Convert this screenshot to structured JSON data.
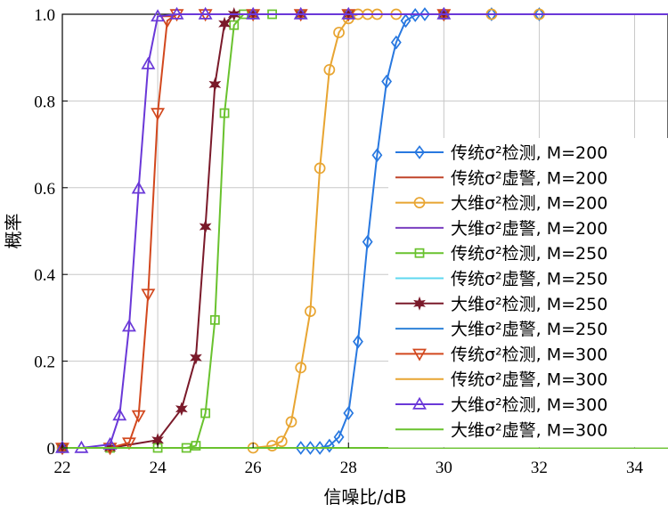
{
  "chart_data": {
    "type": "line",
    "xlabel": "信噪比/dB",
    "ylabel": "概率",
    "xlim": [
      22,
      34.7
    ],
    "ylim": [
      0,
      1
    ],
    "x_ticks": [
      "22",
      "24",
      "26",
      "28",
      "30",
      "32",
      "34"
    ],
    "y_ticks": [
      "0",
      "0.2",
      "0.4",
      "0.6",
      "0.8",
      "1.0"
    ],
    "grid": true,
    "legend_position": "right",
    "series": [
      {
        "name": "传统σ²检测, M=200",
        "color": "#2878e0",
        "marker": "diamond",
        "x": [
          22,
          27,
          27.2,
          27.4,
          27.6,
          27.8,
          28,
          28.2,
          28.4,
          28.6,
          28.8,
          29,
          29.2,
          29.4,
          29.6,
          30,
          31,
          32,
          34.7
        ],
        "y": [
          0,
          0,
          0,
          0,
          0.005,
          0.025,
          0.08,
          0.245,
          0.475,
          0.675,
          0.845,
          0.935,
          0.985,
          0.998,
          1,
          1,
          1,
          1,
          1
        ]
      },
      {
        "name": "传统σ²虚警, M=200",
        "color": "#c0452a",
        "marker": "none",
        "x": [
          22,
          34.7
        ],
        "y": [
          0,
          0
        ]
      },
      {
        "name": "大维σ²检测, M=200",
        "color": "#e8a532",
        "marker": "circle",
        "x": [
          22,
          26,
          26.4,
          26.6,
          26.8,
          27,
          27.2,
          27.4,
          27.6,
          27.8,
          28,
          28.2,
          28.4,
          28.6,
          29,
          30,
          31,
          32,
          34.7
        ],
        "y": [
          0,
          0,
          0.005,
          0.015,
          0.06,
          0.185,
          0.315,
          0.645,
          0.872,
          0.958,
          0.99,
          1,
          1,
          1,
          1,
          1,
          1,
          1,
          1
        ]
      },
      {
        "name": "大维σ²虚警, M=200",
        "color": "#7a3fc0",
        "marker": "none",
        "x": [
          22,
          34.7
        ],
        "y": [
          0,
          0
        ]
      },
      {
        "name": "传统σ²检测, M=250",
        "color": "#69c22e",
        "marker": "square",
        "x": [
          22,
          23,
          24,
          24.6,
          24.8,
          25,
          25.2,
          25.4,
          25.6,
          25.8,
          26,
          26.4,
          27,
          28,
          30,
          34.7
        ],
        "y": [
          0,
          0,
          0,
          0,
          0.005,
          0.08,
          0.295,
          0.772,
          0.975,
          1,
          1,
          1,
          1,
          1,
          1,
          1
        ]
      },
      {
        "name": "传统σ²虚警, M=250",
        "color": "#5fd8f0",
        "marker": "none",
        "x": [
          22,
          34.7
        ],
        "y": [
          0,
          0
        ]
      },
      {
        "name": "大维σ²检测, M=250",
        "color": "#7a1a2a",
        "marker": "star",
        "x": [
          22,
          23,
          24,
          24.5,
          24.8,
          25,
          25.2,
          25.4,
          25.6,
          26,
          27,
          28,
          30,
          34.7
        ],
        "y": [
          0,
          0,
          0.018,
          0.09,
          0.208,
          0.51,
          0.838,
          0.978,
          1,
          1,
          1,
          1,
          1,
          1
        ]
      },
      {
        "name": "大维σ²虚警, M=250",
        "color": "#2e82d8",
        "marker": "none",
        "x": [
          22,
          34.7
        ],
        "y": [
          0,
          0
        ]
      },
      {
        "name": "传统σ²检测, M=300",
        "color": "#d2481e",
        "marker": "triangle-down",
        "x": [
          22,
          23,
          23.4,
          23.6,
          23.8,
          24,
          24.2,
          24.4,
          25,
          26,
          27,
          28,
          30,
          34.7
        ],
        "y": [
          0,
          0,
          0.012,
          0.075,
          0.355,
          0.772,
          0.985,
          1,
          1,
          1,
          1,
          1,
          1,
          1
        ]
      },
      {
        "name": "传统σ²虚警, M=300",
        "color": "#e8a532",
        "marker": "none",
        "x": [
          22,
          34.7
        ],
        "y": [
          0,
          0
        ]
      },
      {
        "name": "大维σ²检测, M=300",
        "color": "#6a38d8",
        "marker": "triangle-up",
        "x": [
          22,
          22.4,
          23,
          23.2,
          23.4,
          23.6,
          23.8,
          24,
          24.4,
          25,
          26,
          27,
          28,
          30,
          34.7
        ],
        "y": [
          0,
          0,
          0.008,
          0.075,
          0.28,
          0.598,
          0.885,
          0.995,
          1,
          1,
          1,
          1,
          1,
          1,
          1
        ]
      },
      {
        "name": "大维σ²虚警, M=300",
        "color": "#69c22e",
        "marker": "none",
        "x": [
          22,
          34.7
        ],
        "y": [
          0,
          0
        ]
      }
    ]
  }
}
